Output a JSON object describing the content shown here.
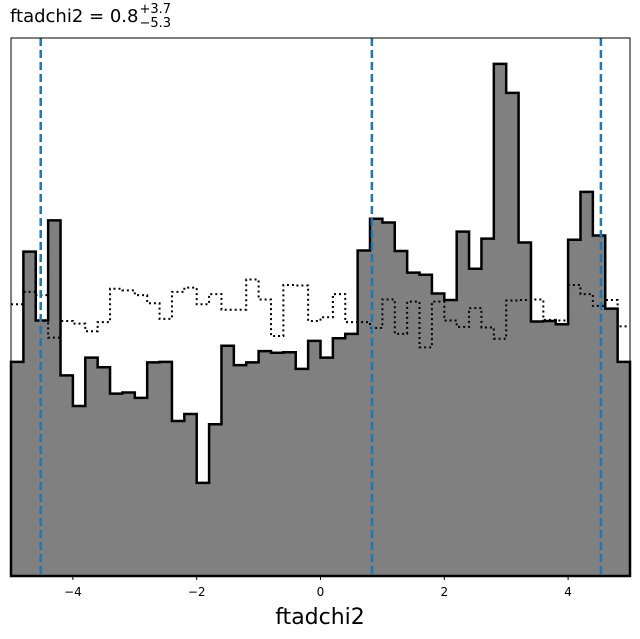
{
  "chart_data": {
    "type": "histogram",
    "title": {
      "text": "ftadchi2 = 0.8",
      "superscript": "+3.7",
      "subscript": "−5.3"
    },
    "xlabel": "ftadchi2",
    "ylabel": "",
    "xlim": [
      -5.0,
      5.0
    ],
    "ylim": [
      0,
      1.0
    ],
    "xticks": [
      -4,
      -2,
      0,
      2,
      4
    ],
    "xtick_labels": [
      "−4",
      "−2",
      "0",
      "2",
      "4"
    ],
    "bin_edges": [
      -5.0,
      -4.8,
      -4.6,
      -4.4,
      -4.2,
      -4.0,
      -3.8,
      -3.6,
      -3.4,
      -3.2,
      -3.0,
      -2.8,
      -2.6,
      -2.4,
      -2.2,
      -2.0,
      -1.8,
      -1.6,
      -1.4,
      -1.2,
      -1.0,
      -0.8,
      -0.6,
      -0.4,
      -0.2,
      0.0,
      0.2,
      0.4,
      0.6,
      0.8,
      1.0,
      1.2,
      1.4,
      1.6,
      1.8,
      2.0,
      2.2,
      2.4,
      2.6,
      2.8,
      3.0,
      3.2,
      3.4,
      3.6,
      3.8,
      4.0,
      4.2,
      4.4,
      4.6,
      4.8,
      5.0
    ],
    "series": [
      {
        "style": "filled",
        "fill_color": "#808080",
        "edge_color": "#000000",
        "values": [
          0.398,
          0.603,
          0.475,
          0.661,
          0.373,
          0.316,
          0.406,
          0.388,
          0.339,
          0.341,
          0.331,
          0.397,
          0.398,
          0.288,
          0.301,
          0.173,
          0.282,
          0.428,
          0.392,
          0.397,
          0.418,
          0.415,
          0.416,
          0.385,
          0.437,
          0.406,
          0.442,
          0.45,
          0.605,
          0.664,
          0.657,
          0.604,
          0.564,
          0.56,
          0.525,
          0.513,
          0.64,
          0.571,
          0.627,
          0.952,
          0.898,
          0.62,
          0.473,
          0.474,
          0.468,
          0.625,
          0.714,
          0.633,
          0.497,
          0.398
        ]
      },
      {
        "style": "dotted",
        "edge_color": "#000000",
        "values": [
          0.505,
          0.528,
          0.522,
          0.443,
          0.474,
          0.469,
          0.455,
          0.472,
          0.534,
          0.531,
          0.522,
          0.507,
          0.478,
          0.528,
          0.536,
          0.505,
          0.524,
          0.495,
          0.495,
          0.551,
          0.514,
          0.446,
          0.541,
          0.54,
          0.474,
          0.481,
          0.524,
          0.472,
          0.472,
          0.461,
          0.514,
          0.45,
          0.51,
          0.425,
          0.51,
          0.475,
          0.463,
          0.498,
          0.462,
          0.441,
          0.512,
          0.513,
          0.514,
          0.476,
          0.475,
          0.541,
          0.524,
          0.502,
          0.513,
          0.464
        ]
      }
    ],
    "vlines": {
      "x": [
        -4.52,
        0.83,
        4.53
      ],
      "color": "#1f77b4",
      "style": "dashed"
    },
    "grid": false,
    "legend": null
  }
}
